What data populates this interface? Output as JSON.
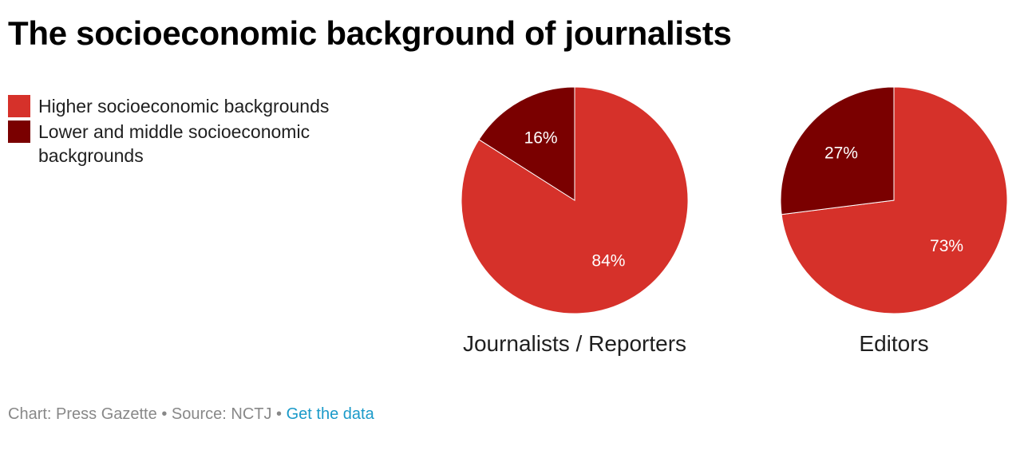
{
  "title": "The socioeconomic background of journalists",
  "legend": [
    {
      "label": "Higher socioeconomic backgrounds",
      "color": "#d6312a"
    },
    {
      "label": "Lower and middle socioeconomic backgrounds",
      "color": "#7a0000"
    }
  ],
  "chart_data": {
    "type": "pie",
    "series_names": [
      "Higher socioeconomic backgrounds",
      "Lower and middle socioeconomic backgrounds"
    ],
    "colors": [
      "#d6312a",
      "#7a0000"
    ],
    "pies": [
      {
        "name": "Journalists / Reporters",
        "slices": [
          {
            "label": "Higher socioeconomic backgrounds",
            "value": 84,
            "display": "84%"
          },
          {
            "label": "Lower and middle socioeconomic backgrounds",
            "value": 16,
            "display": "16%"
          }
        ]
      },
      {
        "name": "Editors",
        "slices": [
          {
            "label": "Higher socioeconomic backgrounds",
            "value": 73,
            "display": "73%"
          },
          {
            "label": "Lower and middle socioeconomic backgrounds",
            "value": 27,
            "display": "27%"
          }
        ]
      }
    ]
  },
  "footer": {
    "chart_credit": "Chart: Press Gazette",
    "separator": "•",
    "source": "Source: NCTJ",
    "data_link": "Get the data"
  }
}
